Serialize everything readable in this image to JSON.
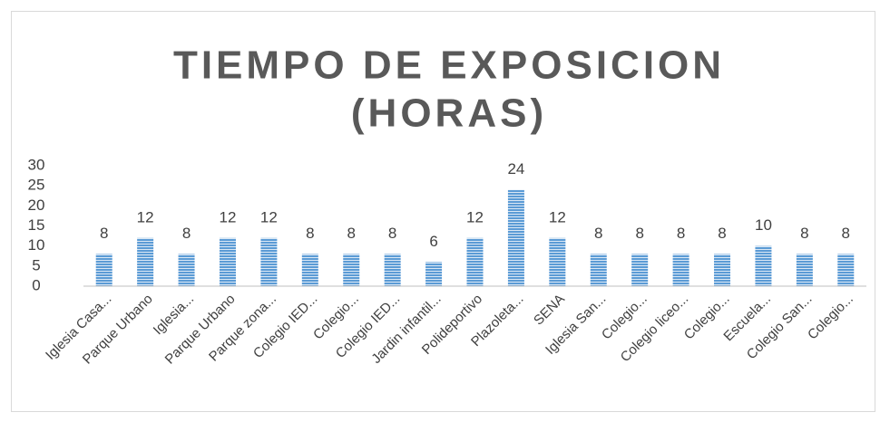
{
  "chart_data": {
    "type": "bar",
    "title": [
      "TIEMPO DE EXPOSICION",
      "(HORAS)"
    ],
    "categories": [
      "Iglesia Casa...",
      "Parque Urbano",
      "Iglesia...",
      "Parque Urbano",
      "Parque zona...",
      "Colegio IED...",
      "Colegio...",
      "Colegio IED...",
      "Jardin infantil...",
      "Polideportivo",
      "Plazoleta...",
      "SENA",
      "Iglesia San...",
      "Colegio...",
      "Colegio liceo...",
      "Colegio...",
      "Escuela...",
      "Colegio San...",
      "Colegio..."
    ],
    "values": [
      8,
      12,
      8,
      12,
      12,
      8,
      8,
      8,
      6,
      12,
      24,
      12,
      8,
      8,
      8,
      8,
      10,
      8,
      8
    ],
    "color": "#5b9bd5",
    "ylim": [
      0,
      30
    ],
    "yticks": [
      0,
      5,
      10,
      15,
      20,
      25,
      30
    ],
    "grid": false
  }
}
